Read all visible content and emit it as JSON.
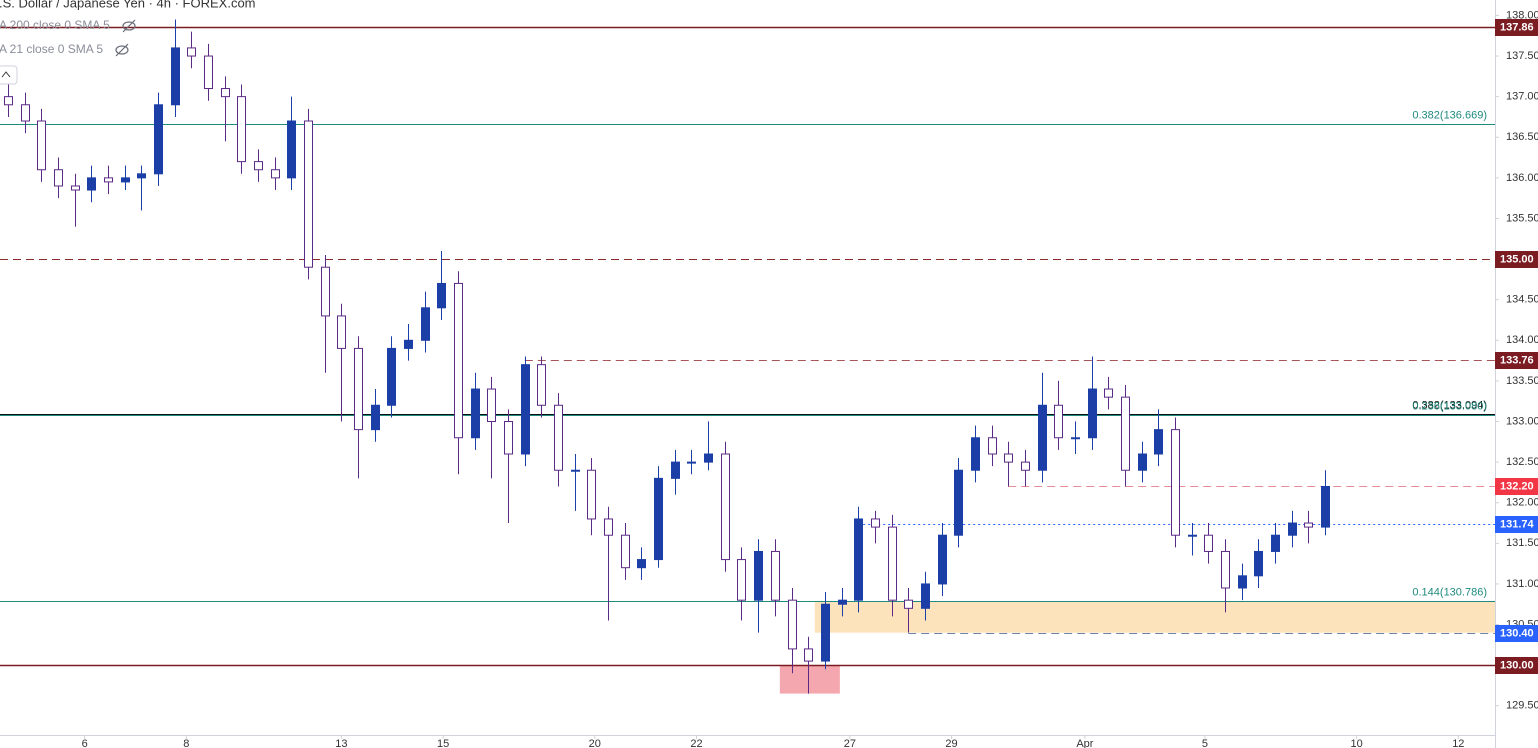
{
  "chart_data": {
    "type": "candlestick",
    "title": ".S. Dollar / Japanese Yen · 4h · FOREX.com",
    "indicators": [
      "A 200 close 0 SMA 5",
      "A 21 close 0 SMA 5"
    ],
    "up_color": "#1b3fa6",
    "down_color": "#ffffff",
    "down_border": "#5b2a86",
    "open": [
      137.0,
      136.9,
      136.7,
      136.1,
      135.9,
      135.85,
      136.0,
      135.95,
      136.0,
      136.05,
      136.9,
      137.6,
      137.5,
      137.1,
      137.0,
      136.2,
      136.1,
      136.0,
      136.7,
      134.9,
      134.3,
      133.9,
      132.9,
      133.2,
      133.9,
      134.0,
      134.4,
      134.7,
      132.8,
      133.4,
      133.0,
      132.6,
      133.7,
      133.2,
      132.4,
      132.4,
      131.8,
      131.6,
      131.2,
      131.3,
      132.3,
      132.5,
      132.5,
      132.6,
      131.3,
      130.8,
      131.4,
      130.8,
      130.2,
      130.05,
      130.75,
      130.8,
      131.8,
      131.7,
      130.8,
      130.7,
      131.0,
      131.6,
      132.4,
      132.8,
      132.6,
      132.5,
      132.4,
      133.2,
      132.8,
      132.8,
      133.4,
      133.3,
      132.4,
      132.6,
      132.9,
      131.6,
      131.6,
      131.4,
      130.95,
      131.1,
      131.4,
      131.6,
      131.75,
      131.7
    ],
    "high": [
      137.15,
      137.05,
      136.85,
      136.25,
      136.05,
      136.15,
      136.15,
      136.15,
      136.15,
      137.05,
      137.95,
      137.8,
      137.65,
      137.25,
      137.15,
      136.35,
      136.25,
      137.0,
      136.85,
      135.05,
      134.45,
      134.05,
      133.4,
      134.05,
      134.2,
      134.6,
      135.1,
      134.85,
      133.6,
      133.55,
      133.15,
      133.8,
      133.8,
      133.35,
      132.6,
      132.55,
      131.95,
      131.75,
      131.45,
      132.45,
      132.65,
      132.65,
      133.0,
      132.75,
      131.45,
      131.55,
      131.55,
      130.95,
      130.35,
      130.9,
      130.95,
      131.95,
      131.9,
      131.85,
      130.95,
      131.15,
      131.75,
      132.55,
      132.95,
      132.95,
      132.75,
      132.65,
      133.6,
      133.5,
      133.0,
      133.8,
      133.55,
      133.45,
      132.75,
      133.15,
      133.05,
      131.75,
      131.75,
      131.55,
      131.25,
      131.55,
      131.75,
      131.9,
      131.9,
      132.4
    ],
    "low": [
      136.75,
      136.55,
      135.95,
      135.75,
      135.4,
      135.7,
      135.8,
      135.85,
      135.6,
      135.9,
      136.75,
      137.35,
      136.95,
      136.45,
      136.05,
      135.95,
      135.85,
      135.85,
      134.75,
      133.6,
      133.0,
      132.3,
      132.75,
      133.05,
      133.75,
      133.85,
      134.25,
      132.35,
      132.65,
      132.3,
      131.75,
      132.45,
      133.05,
      132.2,
      131.9,
      131.6,
      130.55,
      131.05,
      131.05,
      131.2,
      132.1,
      132.35,
      132.4,
      131.15,
      130.55,
      130.4,
      130.6,
      129.9,
      129.65,
      129.95,
      130.6,
      130.65,
      131.5,
      130.6,
      130.4,
      130.55,
      130.85,
      131.45,
      132.25,
      132.45,
      132.2,
      132.2,
      132.25,
      132.65,
      132.6,
      132.65,
      133.15,
      132.2,
      132.25,
      132.45,
      131.45,
      131.35,
      131.25,
      130.65,
      130.8,
      130.95,
      131.25,
      131.45,
      131.5,
      131.6
    ],
    "close": [
      136.9,
      136.7,
      136.1,
      135.9,
      135.85,
      136.0,
      135.95,
      136.0,
      136.05,
      136.9,
      137.6,
      137.5,
      137.1,
      137.0,
      136.2,
      136.1,
      136.0,
      136.7,
      134.9,
      134.3,
      133.9,
      132.9,
      133.2,
      133.9,
      134.0,
      134.4,
      134.7,
      132.8,
      133.4,
      133.0,
      132.6,
      133.7,
      133.2,
      132.4,
      132.4,
      131.8,
      131.6,
      131.2,
      131.3,
      132.3,
      132.5,
      132.5,
      132.6,
      131.3,
      130.8,
      131.4,
      130.8,
      130.2,
      130.05,
      130.75,
      130.8,
      131.8,
      131.7,
      130.8,
      130.7,
      131.0,
      131.6,
      132.4,
      132.8,
      132.6,
      132.5,
      132.4,
      133.2,
      132.8,
      132.8,
      133.4,
      133.3,
      132.4,
      132.6,
      132.9,
      131.6,
      131.6,
      131.4,
      130.95,
      131.1,
      131.4,
      131.6,
      131.75,
      131.7,
      132.2
    ],
    "xlim": [
      -0.48,
      89.2
    ],
    "xticks": [
      {
        "value": 4.6,
        "label": "6"
      },
      {
        "value": 10.7,
        "label": "8"
      },
      {
        "value": 20,
        "label": "13"
      },
      {
        "value": 26.1,
        "label": "15"
      },
      {
        "value": 35.2,
        "label": "20"
      },
      {
        "value": 41.3,
        "label": "22"
      },
      {
        "value": 50.5,
        "label": "27"
      },
      {
        "value": 56.6,
        "label": "29"
      },
      {
        "value": 64.6,
        "label": "Apr"
      },
      {
        "value": 71.8,
        "label": "5"
      },
      {
        "value": 80.9,
        "label": "10"
      },
      {
        "value": 87,
        "label": "12"
      }
    ],
    "ylim": [
      129.14,
      138.19
    ],
    "yticks": [
      {
        "value": 129.5,
        "label": "129.50"
      },
      {
        "value": 130,
        "label": "130.00"
      },
      {
        "value": 130.5,
        "label": "130.50"
      },
      {
        "value": 131,
        "label": "131.00"
      },
      {
        "value": 131.5,
        "label": "131.50"
      },
      {
        "value": 132,
        "label": "132.00"
      },
      {
        "value": 132.5,
        "label": "132.50"
      },
      {
        "value": 133,
        "label": "133.00"
      },
      {
        "value": 133.5,
        "label": "133.50"
      },
      {
        "value": 134,
        "label": "134.00"
      },
      {
        "value": 134.5,
        "label": "134.50"
      },
      {
        "value": 135,
        "label": "135.00"
      },
      {
        "value": 135.5,
        "label": "135.50"
      },
      {
        "value": 136,
        "label": "136.00"
      },
      {
        "value": 136.5,
        "label": "136.50"
      },
      {
        "value": 137,
        "label": "137.00"
      },
      {
        "value": 137.5,
        "label": "137.50"
      },
      {
        "value": 138,
        "label": "138.00"
      }
    ],
    "grid": false,
    "zones": [
      {
        "y_from": 130.4,
        "y_to": 130.786,
        "start": 48.4,
        "color": "#fde3bb"
      },
      {
        "y_from": 129.65,
        "y_to": 130.0,
        "start": 46.3,
        "end": 49.9,
        "color": "#f4a7ae"
      }
    ],
    "levels": [
      {
        "value": 137.86,
        "label": "137.86",
        "color": "#7b1c22",
        "style": "solid",
        "box": "#7b1c22"
      },
      {
        "value": 136.669,
        "label": "0.382(136.669)",
        "color": "#1f8a7e",
        "style": "solid"
      },
      {
        "value": 135.0,
        "label": "135.00",
        "color": "#8b2a2a",
        "style": "dashed",
        "box": "#7b1c22"
      },
      {
        "value": 133.76,
        "label": "133.76",
        "color": "#a9545a",
        "style": "dashed",
        "start": 31,
        "box": "#7b1c22"
      },
      {
        "value": 133.094,
        "label": "0.382(133.094)",
        "color": "#111111",
        "style": "solid"
      },
      {
        "value": 133.08,
        "label": "0.236(133.080)",
        "color": "#1f8a7e",
        "style": "solid"
      },
      {
        "value": 132.2,
        "label": "132.20",
        "color": "#e58c9a",
        "style": "dashed",
        "start": 60,
        "box": "#f23645"
      },
      {
        "value": 131.74,
        "label": "131.74",
        "color": "#2962ff",
        "style": "dotted",
        "start": 51,
        "box": "#2962ff"
      },
      {
        "value": 130.786,
        "label": "0.144(130.786)",
        "color": "#1f8a7e",
        "style": "solid"
      },
      {
        "value": 130.4,
        "label": "130.40",
        "color": "#6f7fa6",
        "style": "dashed",
        "start": 54,
        "box": "#2962ff"
      },
      {
        "value": 130.0,
        "label": "130.00",
        "color": "#7b1c22",
        "style": "solid",
        "box": "#7b1c22"
      }
    ]
  }
}
